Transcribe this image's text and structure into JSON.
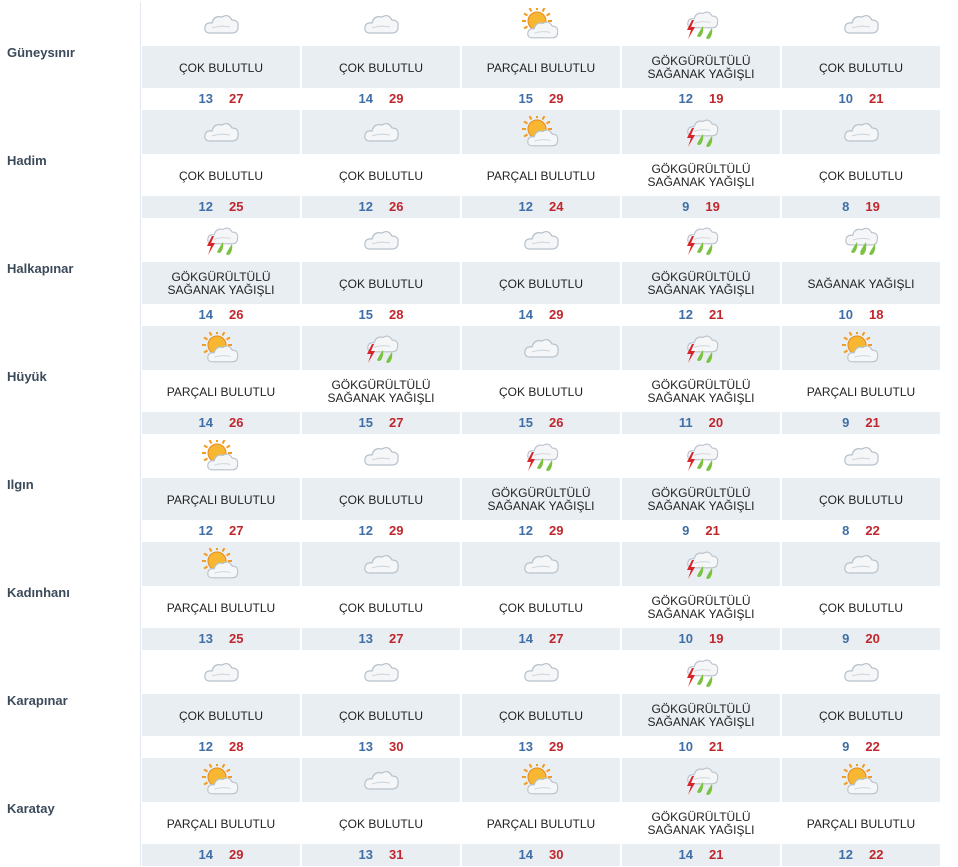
{
  "labels": {
    "cok": "ÇOK BULUTLU",
    "parcali": "PARÇALI BULUTLU",
    "gok1": "GÖKGÜRÜLTÜLÜ",
    "gok2": "SAĞANAK YAĞIŞLI",
    "saganak": "SAĞANAK YAĞIŞLI"
  },
  "colors": {
    "shade": "#e9eef3",
    "low": "#3f6fa8",
    "high": "#c0262c",
    "city": "#3b4a5a"
  },
  "rows": [
    {
      "city": "Güneysınır",
      "days": [
        {
          "w": "cok",
          "lo": "13",
          "hi": "27"
        },
        {
          "w": "cok",
          "lo": "14",
          "hi": "29"
        },
        {
          "w": "parcali",
          "lo": "15",
          "hi": "29"
        },
        {
          "w": "gok",
          "lo": "12",
          "hi": "19"
        },
        {
          "w": "cok",
          "lo": "10",
          "hi": "21"
        }
      ]
    },
    {
      "city": "Hadim",
      "days": [
        {
          "w": "cok",
          "lo": "12",
          "hi": "25"
        },
        {
          "w": "cok",
          "lo": "12",
          "hi": "26"
        },
        {
          "w": "parcali",
          "lo": "12",
          "hi": "24"
        },
        {
          "w": "gok",
          "lo": "9",
          "hi": "19"
        },
        {
          "w": "cok",
          "lo": "8",
          "hi": "19"
        }
      ]
    },
    {
      "city": "Halkapınar",
      "days": [
        {
          "w": "gok",
          "lo": "14",
          "hi": "26"
        },
        {
          "w": "cok",
          "lo": "15",
          "hi": "28"
        },
        {
          "w": "cok",
          "lo": "14",
          "hi": "29"
        },
        {
          "w": "gok",
          "lo": "12",
          "hi": "21"
        },
        {
          "w": "saganak",
          "lo": "10",
          "hi": "18"
        }
      ]
    },
    {
      "city": "Hüyük",
      "days": [
        {
          "w": "parcali",
          "lo": "14",
          "hi": "26"
        },
        {
          "w": "gok",
          "lo": "15",
          "hi": "27"
        },
        {
          "w": "cok",
          "lo": "15",
          "hi": "26"
        },
        {
          "w": "gok",
          "lo": "11",
          "hi": "20"
        },
        {
          "w": "parcali",
          "lo": "9",
          "hi": "21"
        }
      ]
    },
    {
      "city": "Ilgın",
      "days": [
        {
          "w": "parcali",
          "lo": "12",
          "hi": "27"
        },
        {
          "w": "cok",
          "lo": "12",
          "hi": "29"
        },
        {
          "w": "gok",
          "lo": "12",
          "hi": "29"
        },
        {
          "w": "gok",
          "lo": "9",
          "hi": "21"
        },
        {
          "w": "cok",
          "lo": "8",
          "hi": "22"
        }
      ]
    },
    {
      "city": "Kadınhanı",
      "days": [
        {
          "w": "parcali",
          "lo": "13",
          "hi": "25"
        },
        {
          "w": "cok",
          "lo": "13",
          "hi": "27"
        },
        {
          "w": "cok",
          "lo": "14",
          "hi": "27"
        },
        {
          "w": "gok",
          "lo": "10",
          "hi": "19"
        },
        {
          "w": "cok",
          "lo": "9",
          "hi": "20"
        }
      ]
    },
    {
      "city": "Karapınar",
      "days": [
        {
          "w": "cok",
          "lo": "12",
          "hi": "28"
        },
        {
          "w": "cok",
          "lo": "13",
          "hi": "30"
        },
        {
          "w": "cok",
          "lo": "13",
          "hi": "29"
        },
        {
          "w": "gok",
          "lo": "10",
          "hi": "21"
        },
        {
          "w": "cok",
          "lo": "9",
          "hi": "22"
        }
      ]
    },
    {
      "city": "Karatay",
      "days": [
        {
          "w": "parcali",
          "lo": "14",
          "hi": "29"
        },
        {
          "w": "cok",
          "lo": "13",
          "hi": "31"
        },
        {
          "w": "parcali",
          "lo": "14",
          "hi": "30"
        },
        {
          "w": "gok",
          "lo": "14",
          "hi": "21"
        },
        {
          "w": "parcali",
          "lo": "12",
          "hi": "22"
        }
      ]
    }
  ]
}
